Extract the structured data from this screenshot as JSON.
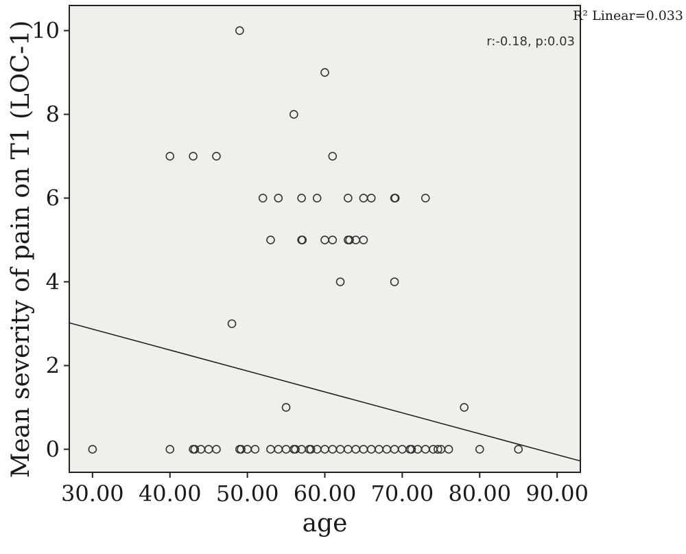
{
  "chart_data": {
    "type": "scatter",
    "title": "",
    "xlabel": "age",
    "ylabel": "Mean severity of pain on T1 (LOC-1)",
    "xlim": [
      27,
      93
    ],
    "ylim": [
      -0.55,
      10.6
    ],
    "x_ticks": [
      30,
      40,
      50,
      60,
      70,
      80,
      90
    ],
    "x_tick_labels": [
      "30.00",
      "40.00",
      "50.00",
      "60.00",
      "70.00",
      "80.00",
      "90.00"
    ],
    "y_ticks": [
      0,
      2,
      4,
      6,
      8,
      10
    ],
    "y_tick_labels": [
      "0",
      "2",
      "4",
      "6",
      "8",
      "10"
    ],
    "grid": false,
    "plot_background": "#efefec",
    "marker_color": "#333333",
    "line_color": "#222222",
    "r2_label": "R² Linear=0.033",
    "annotation": "r:-0.18, p:0.03",
    "fit_line": {
      "x": [
        27,
        93
      ],
      "y": [
        3.02,
        -0.28
      ]
    },
    "points": [
      {
        "x": 30,
        "y": 0
      },
      {
        "x": 40,
        "y": 0
      },
      {
        "x": 43,
        "y": 0
      },
      {
        "x": 43.2,
        "y": 0
      },
      {
        "x": 44,
        "y": 0
      },
      {
        "x": 45,
        "y": 0
      },
      {
        "x": 46,
        "y": 0
      },
      {
        "x": 49,
        "y": 0
      },
      {
        "x": 49.2,
        "y": 0
      },
      {
        "x": 50,
        "y": 0
      },
      {
        "x": 51,
        "y": 0
      },
      {
        "x": 53,
        "y": 0
      },
      {
        "x": 54,
        "y": 0
      },
      {
        "x": 55,
        "y": 0
      },
      {
        "x": 56,
        "y": 0
      },
      {
        "x": 56.2,
        "y": 0
      },
      {
        "x": 57,
        "y": 0
      },
      {
        "x": 58,
        "y": 0
      },
      {
        "x": 58.2,
        "y": 0
      },
      {
        "x": 59,
        "y": 0
      },
      {
        "x": 60,
        "y": 0
      },
      {
        "x": 61,
        "y": 0
      },
      {
        "x": 62,
        "y": 0
      },
      {
        "x": 63,
        "y": 0
      },
      {
        "x": 64,
        "y": 0
      },
      {
        "x": 65,
        "y": 0
      },
      {
        "x": 66,
        "y": 0
      },
      {
        "x": 67,
        "y": 0
      },
      {
        "x": 68,
        "y": 0
      },
      {
        "x": 69,
        "y": 0
      },
      {
        "x": 70,
        "y": 0
      },
      {
        "x": 71,
        "y": 0
      },
      {
        "x": 71.2,
        "y": 0
      },
      {
        "x": 72,
        "y": 0
      },
      {
        "x": 73,
        "y": 0
      },
      {
        "x": 74,
        "y": 0
      },
      {
        "x": 74.6,
        "y": 0
      },
      {
        "x": 75,
        "y": 0
      },
      {
        "x": 76,
        "y": 0
      },
      {
        "x": 80,
        "y": 0
      },
      {
        "x": 85,
        "y": 0
      },
      {
        "x": 55,
        "y": 1
      },
      {
        "x": 78,
        "y": 1
      },
      {
        "x": 48,
        "y": 3
      },
      {
        "x": 62,
        "y": 4
      },
      {
        "x": 69,
        "y": 4
      },
      {
        "x": 53,
        "y": 5
      },
      {
        "x": 57,
        "y": 5
      },
      {
        "x": 57.1,
        "y": 5
      },
      {
        "x": 60,
        "y": 5
      },
      {
        "x": 61,
        "y": 5
      },
      {
        "x": 63,
        "y": 5
      },
      {
        "x": 63.2,
        "y": 5
      },
      {
        "x": 64,
        "y": 5
      },
      {
        "x": 65,
        "y": 5
      },
      {
        "x": 52,
        "y": 6
      },
      {
        "x": 54,
        "y": 6
      },
      {
        "x": 57,
        "y": 6
      },
      {
        "x": 59,
        "y": 6
      },
      {
        "x": 63,
        "y": 6
      },
      {
        "x": 65,
        "y": 6
      },
      {
        "x": 66,
        "y": 6
      },
      {
        "x": 69,
        "y": 6
      },
      {
        "x": 69.1,
        "y": 6
      },
      {
        "x": 73,
        "y": 6
      },
      {
        "x": 40,
        "y": 7
      },
      {
        "x": 43,
        "y": 7
      },
      {
        "x": 46,
        "y": 7
      },
      {
        "x": 61,
        "y": 7
      },
      {
        "x": 56,
        "y": 8
      },
      {
        "x": 60,
        "y": 9
      },
      {
        "x": 49,
        "y": 10
      }
    ]
  }
}
